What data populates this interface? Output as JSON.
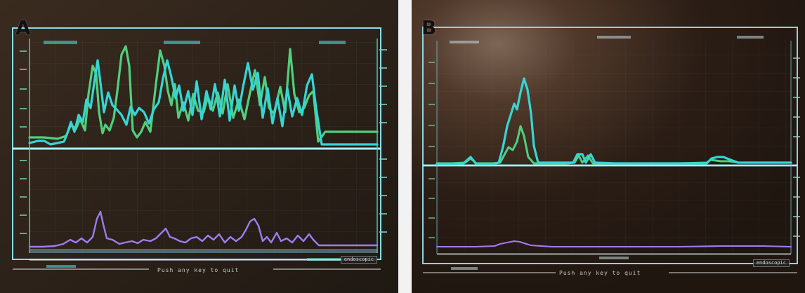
{
  "panels": [
    {
      "label": "A",
      "footer_text": "Push any key to quit",
      "lower_right_text": "endoscopic"
    },
    {
      "label": "B",
      "footer_text": "Push any key to quit",
      "lower_right_text": "endoscopic"
    }
  ],
  "colors": {
    "screen_background": "#2b1f16",
    "grid_line": "#7cd8e2",
    "trace_cyan": "#35d6d5",
    "trace_green": "#4fd07d",
    "trace_purple": "#9f7cf0"
  }
}
